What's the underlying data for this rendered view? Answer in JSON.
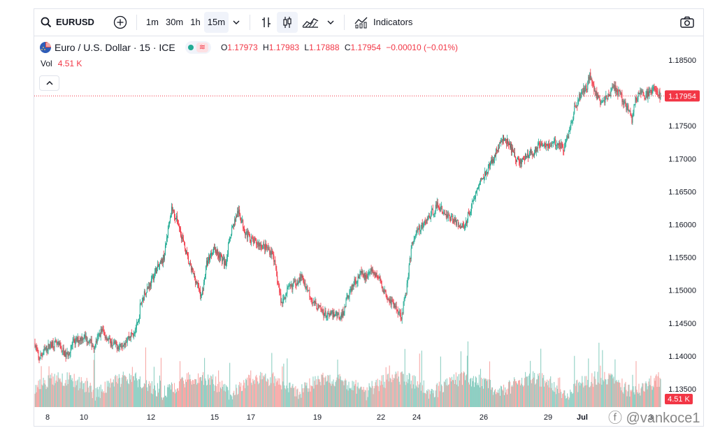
{
  "toolbar": {
    "symbol": "EURUSD",
    "intervals": [
      "1m",
      "30m",
      "1h",
      "15m"
    ],
    "active_interval": "15m",
    "indicators_label": "Indicators"
  },
  "legend": {
    "title": "Euro / U.S. Dollar · 15 · ICE",
    "open_key": "O",
    "open": "1.17973",
    "high_key": "H",
    "high": "1.17983",
    "low_key": "L",
    "low": "1.17888",
    "close_key": "C",
    "close": "1.17954",
    "change": "−0.00010 (−0.01%)",
    "vol_label": "Vol",
    "vol_value": "4.51 K",
    "wave_glyph": "≋"
  },
  "price_tag": "1.17954",
  "volume_tag": "4.51 K",
  "watermark": "ⓕ @vankoce1",
  "colors": {
    "up": "#22ab94",
    "down": "#f23645",
    "up_vol": "#8fcfc3",
    "down_vol": "#f7a9a7"
  },
  "chart_data": {
    "type": "candlestick",
    "y_ticks": [
      "1.18500",
      "1.18000",
      "1.17500",
      "1.17000",
      "1.16500",
      "1.16000",
      "1.15500",
      "1.15000",
      "1.14500",
      "1.14000",
      "1.13500"
    ],
    "ylim": [
      1.1315,
      1.1865
    ],
    "x_ticks": [
      "8",
      "10",
      "12",
      "15",
      "17",
      "19",
      "22",
      "24",
      "26",
      "29",
      "Jul",
      "3"
    ],
    "last_price": 1.17954,
    "series": [
      {
        "name": "Price (approx. path)",
        "points": [
          [
            0,
            1.142
          ],
          [
            5,
            1.1395
          ],
          [
            15,
            1.141
          ],
          [
            25,
            1.142
          ],
          [
            35,
            1.1415
          ],
          [
            45,
            1.14
          ],
          [
            55,
            1.142
          ],
          [
            70,
            1.143
          ],
          [
            85,
            1.1415
          ],
          [
            95,
            1.144
          ],
          [
            108,
            1.142
          ],
          [
            120,
            1.1415
          ],
          [
            130,
            1.1425
          ],
          [
            140,
            1.1435
          ],
          [
            148,
            1.145
          ],
          [
            150,
            1.1475
          ],
          [
            158,
            1.15
          ],
          [
            165,
            1.151
          ],
          [
            172,
            1.153
          ],
          [
            180,
            1.154
          ],
          [
            185,
            1.1555
          ],
          [
            192,
            1.161
          ],
          [
            195,
            1.1625
          ],
          [
            205,
            1.16
          ],
          [
            215,
            1.156
          ],
          [
            220,
            1.154
          ],
          [
            228,
            1.152
          ],
          [
            238,
            1.149
          ],
          [
            245,
            1.154
          ],
          [
            255,
            1.1565
          ],
          [
            262,
            1.1555
          ],
          [
            272,
            1.154
          ],
          [
            280,
            1.159
          ],
          [
            290,
            1.162
          ],
          [
            300,
            1.159
          ],
          [
            310,
            1.1575
          ],
          [
            320,
            1.157
          ],
          [
            330,
            1.1565
          ],
          [
            340,
            1.1555
          ],
          [
            345,
            1.152
          ],
          [
            352,
            1.148
          ],
          [
            360,
            1.15
          ],
          [
            370,
            1.151
          ],
          [
            380,
            1.152
          ],
          [
            390,
            1.15
          ],
          [
            398,
            1.148
          ],
          [
            408,
            1.147
          ],
          [
            418,
            1.146
          ],
          [
            428,
            1.1465
          ],
          [
            438,
            1.146
          ],
          [
            446,
            1.149
          ],
          [
            455,
            1.151
          ],
          [
            465,
            1.1525
          ],
          [
            472,
            1.152
          ],
          [
            480,
            1.153
          ],
          [
            490,
            1.152
          ],
          [
            500,
            1.1495
          ],
          [
            510,
            1.148
          ],
          [
            518,
            1.147
          ],
          [
            523,
            1.146
          ],
          [
            530,
            1.15
          ],
          [
            538,
            1.157
          ],
          [
            545,
            1.159
          ],
          [
            555,
            1.16
          ],
          [
            565,
            1.1615
          ],
          [
            575,
            1.163
          ],
          [
            585,
            1.1615
          ],
          [
            595,
            1.161
          ],
          [
            605,
            1.16
          ],
          [
            612,
            1.1595
          ],
          [
            620,
            1.162
          ],
          [
            630,
            1.165
          ],
          [
            640,
            1.1675
          ],
          [
            650,
            1.169
          ],
          [
            660,
            1.1715
          ],
          [
            668,
            1.173
          ],
          [
            678,
            1.172
          ],
          [
            686,
            1.17
          ],
          [
            694,
            1.1695
          ],
          [
            702,
            1.1705
          ],
          [
            712,
            1.171
          ],
          [
            722,
            1.1725
          ],
          [
            735,
            1.172
          ],
          [
            745,
            1.1725
          ],
          [
            755,
            1.1715
          ],
          [
            762,
            1.174
          ],
          [
            770,
            1.1775
          ],
          [
            780,
            1.18
          ],
          [
            788,
            1.181
          ],
          [
            792,
            1.183
          ],
          [
            800,
            1.18
          ],
          [
            808,
            1.1785
          ],
          [
            818,
            1.1795
          ],
          [
            826,
            1.181
          ],
          [
            836,
            1.1795
          ],
          [
            846,
            1.1775
          ],
          [
            852,
            1.176
          ],
          [
            856,
            1.1785
          ],
          [
            862,
            1.18
          ],
          [
            870,
            1.1795
          ],
          [
            878,
            1.18
          ],
          [
            885,
            1.181
          ],
          [
            893,
            1.1795
          ]
        ]
      }
    ]
  }
}
